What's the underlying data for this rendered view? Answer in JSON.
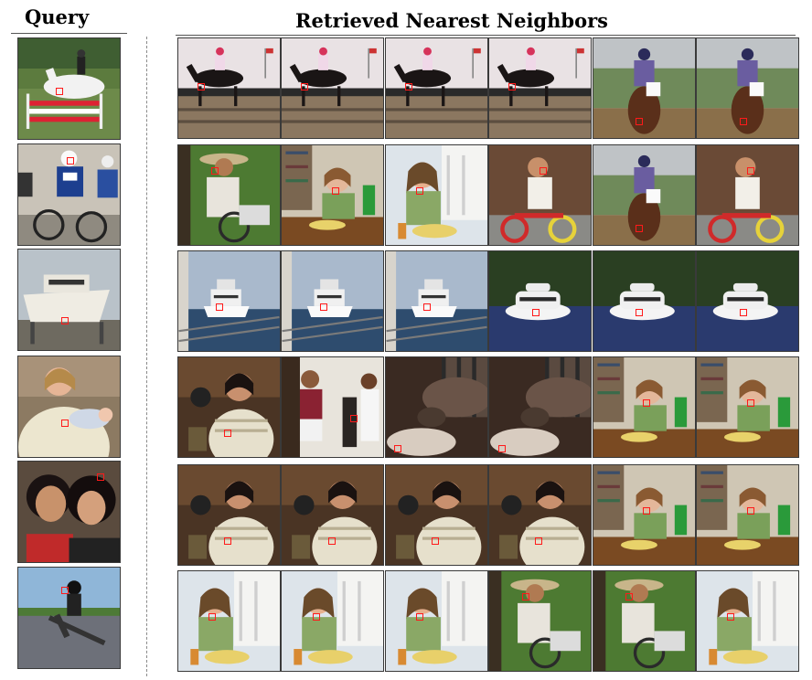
{
  "header": {
    "query_title": "Query",
    "neighbors_title": "Retrieved  Nearest Neighbors"
  },
  "rows": [
    {
      "query": {
        "scene": "horse-jump"
      },
      "neighbors": [
        {
          "scene": "horse-race"
        },
        {
          "scene": "horse-race"
        },
        {
          "scene": "horse-race"
        },
        {
          "scene": "horse-race"
        },
        {
          "scene": "horse-rider"
        },
        {
          "scene": "horse-rider"
        }
      ]
    },
    {
      "query": {
        "scene": "cyclists"
      },
      "neighbors": [
        {
          "scene": "man-hat"
        },
        {
          "scene": "girl-eating"
        },
        {
          "scene": "woman-eating"
        },
        {
          "scene": "child-bike"
        },
        {
          "scene": "horse-rider"
        },
        {
          "scene": "child-bike"
        }
      ]
    },
    {
      "query": {
        "scene": "boat-dock"
      },
      "neighbors": [
        {
          "scene": "ship-harbor"
        },
        {
          "scene": "ship-harbor"
        },
        {
          "scene": "ship-harbor"
        },
        {
          "scene": "boat-water"
        },
        {
          "scene": "boat-water"
        },
        {
          "scene": "boat-water"
        }
      ]
    },
    {
      "query": {
        "scene": "woman-baby"
      },
      "neighbors": [
        {
          "scene": "woman-kitchen"
        },
        {
          "scene": "kids-room"
        },
        {
          "scene": "sofa"
        },
        {
          "scene": "sofa"
        },
        {
          "scene": "girl-eating"
        },
        {
          "scene": "girl-eating"
        }
      ]
    },
    {
      "query": {
        "scene": "couple-selfie"
      },
      "neighbors": [
        {
          "scene": "woman-kitchen"
        },
        {
          "scene": "woman-kitchen"
        },
        {
          "scene": "woman-kitchen"
        },
        {
          "scene": "woman-kitchen"
        },
        {
          "scene": "girl-eating"
        },
        {
          "scene": "girl-eating"
        }
      ]
    },
    {
      "query": {
        "scene": "skateboard"
      },
      "neighbors": [
        {
          "scene": "woman-eating"
        },
        {
          "scene": "woman-eating"
        },
        {
          "scene": "woman-eating"
        },
        {
          "scene": "man-hat"
        },
        {
          "scene": "man-hat"
        },
        {
          "scene": "woman-eating"
        }
      ]
    }
  ],
  "colors": {
    "marker": "#ff1a1a",
    "rule": "#555555",
    "separator": "#8a8a8a"
  }
}
